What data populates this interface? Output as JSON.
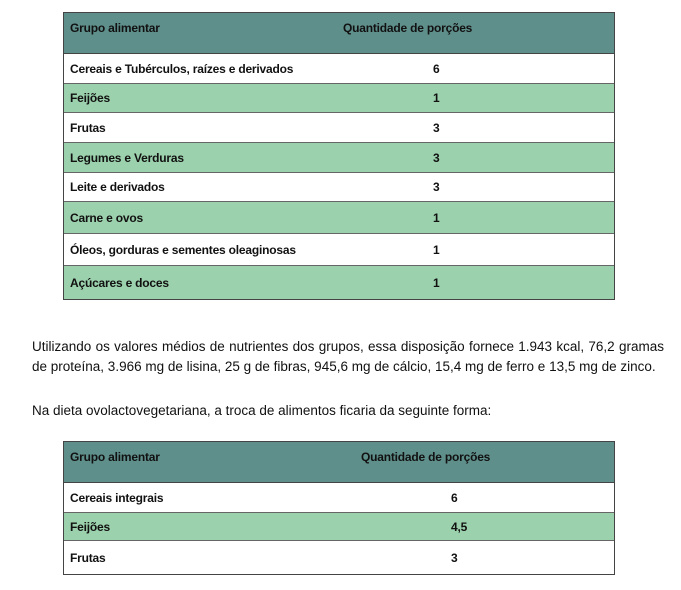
{
  "table1": {
    "headers": [
      "Grupo alimentar",
      "Quantidade de porções"
    ],
    "rows": [
      [
        "Cereais e Tubérculos, raízes e derivados",
        "6"
      ],
      [
        "Feijões",
        "1"
      ],
      [
        "Frutas",
        "3"
      ],
      [
        "Legumes e Verduras",
        "3"
      ],
      [
        "Leite e derivados",
        "3"
      ],
      [
        "Carne e ovos",
        "1"
      ],
      [
        "Óleos, gorduras e sementes oleaginosas",
        "1"
      ],
      [
        "Açúcares e doces",
        "1"
      ]
    ]
  },
  "paragraph1": "Utilizando os valores médios de nutrientes dos grupos, essa disposição fornece 1.943 kcal, 76,2 gramas de proteína, 3.966 mg de lisina, 25 g de fibras, 945,6 mg de cálcio, 15,4 mg de ferro e 13,5 mg de zinco.",
  "paragraph2": "Na dieta ovolactovegetariana, a troca de alimentos ficaria da seguinte forma:",
  "table2": {
    "headers": [
      "Grupo alimentar",
      "Quantidade de porções"
    ],
    "rows": [
      [
        "Cereais integrais",
        "6"
      ],
      [
        "Feijões",
        "4,5"
      ],
      [
        "Frutas",
        "3"
      ]
    ]
  },
  "colors": {
    "header": "#5f8f8b",
    "alt_row": "#9bd1ac"
  }
}
